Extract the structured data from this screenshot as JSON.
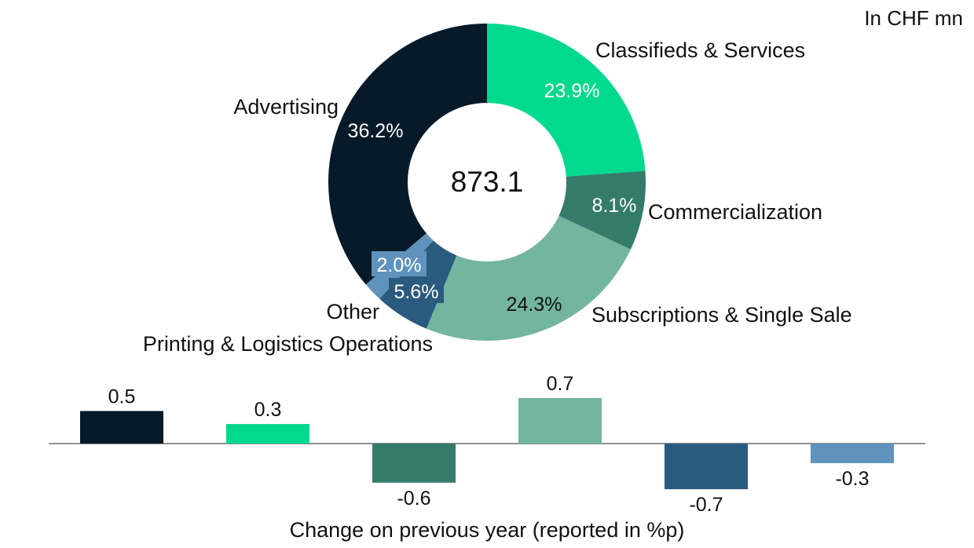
{
  "unit_label": "In CHF mn",
  "total_label": "873.1",
  "palette": {
    "advertising": "#071a29",
    "classifieds": "#00d98e",
    "commercialization": "#357b6b",
    "subscriptions": "#74b5a0",
    "printing": "#2a5a7d",
    "other": "#5f93bd"
  },
  "chart_data": [
    {
      "type": "pie",
      "donut": true,
      "center_label": "873.1",
      "slices": [
        {
          "name": "Classifieds & Services",
          "value": 23.9,
          "label": "23.9%",
          "color": "#00d98e",
          "label_color": "#ffffff"
        },
        {
          "name": "Commercialization",
          "value": 8.1,
          "label": "8.1%",
          "color": "#357b6b",
          "label_color": "#ffffff"
        },
        {
          "name": "Subscriptions & Single Sale",
          "value": 24.3,
          "label": "24.3%",
          "color": "#74b5a0",
          "label_color": "#111111"
        },
        {
          "name": "Printing & Logistics Operations",
          "value": 5.6,
          "label": "5.6%",
          "color": "#2a5a7d",
          "label_color": "#ffffff"
        },
        {
          "name": "Other",
          "value": 2.0,
          "label": "2.0%",
          "color": "#5f93bd",
          "label_color": "#ffffff"
        },
        {
          "name": "Advertising",
          "value": 36.2,
          "label": "36.2%",
          "color": "#071a29",
          "label_color": "#ffffff"
        }
      ]
    },
    {
      "type": "bar",
      "xlabel": "Change on previous year (reported in %p)",
      "categories": [
        "Advertising",
        "Classifieds & Services",
        "Commercialization",
        "Subscriptions & Single Sale",
        "Printing & Logistics Operations",
        "Other"
      ],
      "values": [
        0.5,
        0.3,
        -0.6,
        0.7,
        -0.7,
        -0.3
      ],
      "value_labels": [
        "0.5",
        "0.3",
        "-0.6",
        "0.7",
        "-0.7",
        "-0.3"
      ],
      "colors": [
        "#071a29",
        "#00d98e",
        "#357b6b",
        "#74b5a0",
        "#2a5a7d",
        "#5f93bd"
      ],
      "ylim": [
        -0.7,
        0.7
      ]
    }
  ]
}
